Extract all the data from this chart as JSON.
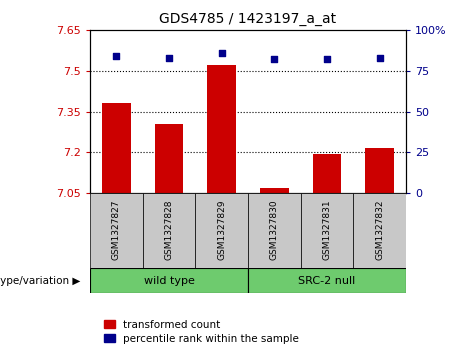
{
  "title": "GDS4785 / 1423197_a_at",
  "samples": [
    "GSM1327827",
    "GSM1327828",
    "GSM1327829",
    "GSM1327830",
    "GSM1327831",
    "GSM1327832"
  ],
  "bar_values": [
    7.38,
    7.305,
    7.52,
    7.07,
    7.195,
    7.215
  ],
  "scatter_values": [
    84,
    83,
    86,
    82,
    82,
    83
  ],
  "ylim_left": [
    7.05,
    7.65
  ],
  "ylim_right": [
    0,
    100
  ],
  "yticks_left": [
    7.05,
    7.2,
    7.35,
    7.5,
    7.65
  ],
  "yticks_right": [
    0,
    25,
    50,
    75,
    100
  ],
  "ytick_labels_left": [
    "7.05",
    "7.2",
    "7.35",
    "7.5",
    "7.65"
  ],
  "ytick_labels_right": [
    "0",
    "25",
    "50",
    "75",
    "100%"
  ],
  "hlines": [
    7.2,
    7.35,
    7.5
  ],
  "bar_color": "#CC0000",
  "scatter_color": "#00008B",
  "bar_width": 0.55,
  "legend_red_label": "transformed count",
  "legend_blue_label": "percentile rank within the sample",
  "genotype_label": "genotype/variation",
  "bg_color": "#C8C8C8",
  "green_color": "#6ECB6E",
  "plot_bg_color": "#FFFFFF",
  "group1_label": "wild type",
  "group2_label": "SRC-2 null"
}
